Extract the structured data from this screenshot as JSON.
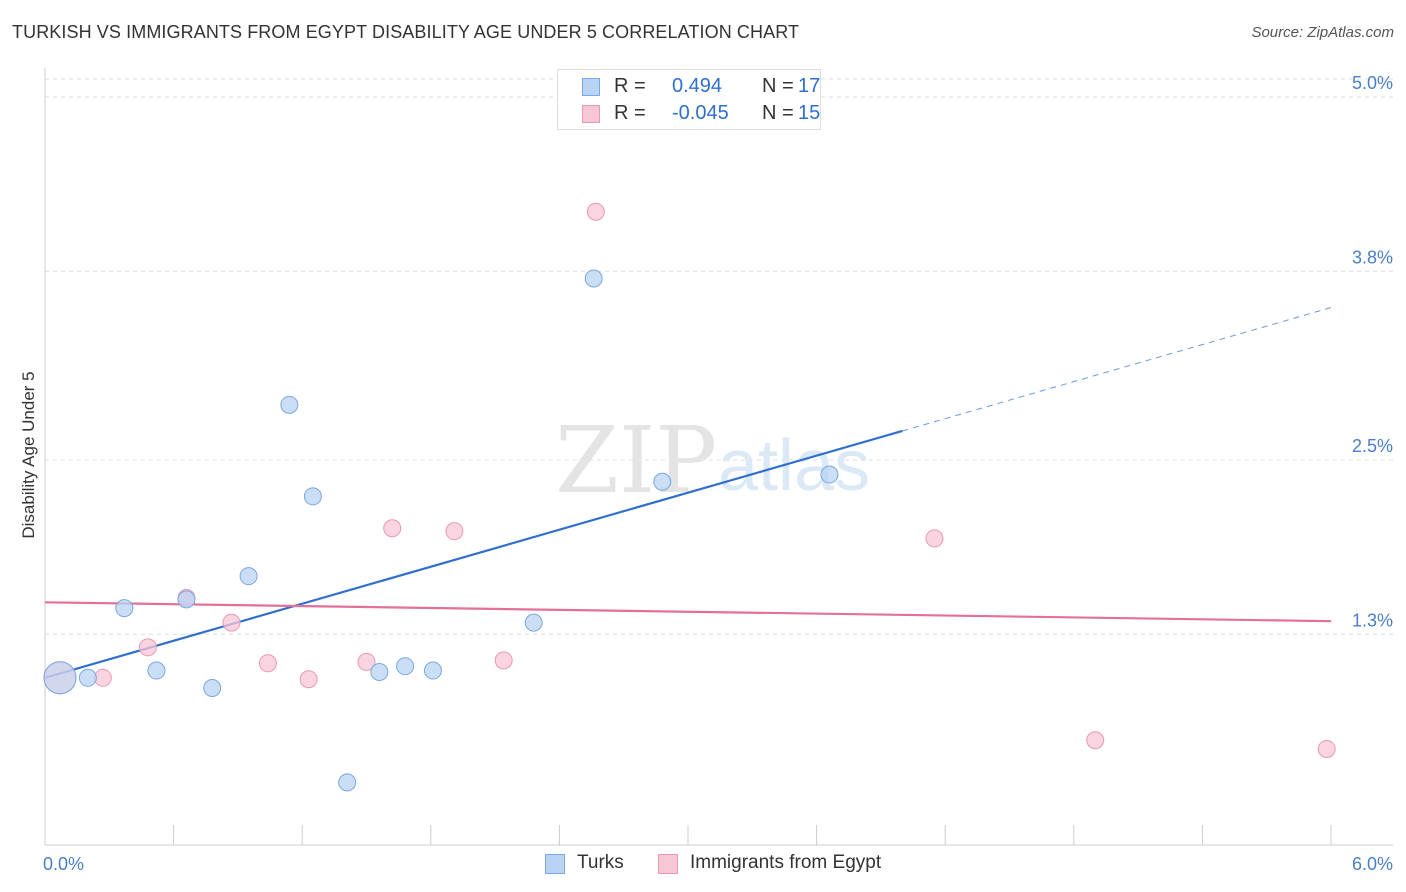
{
  "header": {
    "title": "TURKISH VS IMMIGRANTS FROM EGYPT DISABILITY AGE UNDER 5 CORRELATION CHART",
    "source": "Source: ZipAtlas.com"
  },
  "watermark": {
    "zip": "ZIP",
    "atlas": "atlas"
  },
  "stats": {
    "turks": {
      "r_label": "R =",
      "r_value": "0.494",
      "n_label": "N =",
      "n_value": "17"
    },
    "egypt": {
      "r_label": "R =",
      "r_value": "-0.045",
      "n_label": "N =",
      "n_value": "15"
    }
  },
  "legend": {
    "turks": "Turks",
    "egypt": "Immigrants from Egypt"
  },
  "colors": {
    "turks_fill": "#b8d3f3",
    "turks_stroke": "#7aa8e0",
    "turks_line": "#2f6fcf",
    "egypt_fill": "#f8c6d5",
    "egypt_stroke": "#e899b2",
    "egypt_line": "#e3709a",
    "tick_text": "#4a7fc8",
    "grid": "#dcdcdc"
  },
  "chart_data": {
    "type": "scatter",
    "title": "TURKISH VS IMMIGRANTS FROM EGYPT DISABILITY AGE UNDER 5 CORRELATION CHART",
    "xlabel": "",
    "ylabel": "Disability Age Under 5",
    "xlim": [
      0.0,
      6.0
    ],
    "ylim": [
      0.0,
      5.2
    ],
    "x_tick_labels": [
      {
        "value": 0.0,
        "label": "0.0%"
      },
      {
        "value": 6.0,
        "label": "6.0%"
      }
    ],
    "y_ticks": [
      {
        "value": 1.3,
        "label": "1.3%"
      },
      {
        "value": 2.5,
        "label": "2.5%"
      },
      {
        "value": 3.8,
        "label": "3.8%"
      },
      {
        "value": 5.0,
        "label": "5.0%"
      }
    ],
    "grid": true,
    "legend_position": "bottom-center",
    "series": [
      {
        "name": "Turks",
        "r": 0.494,
        "n": 17,
        "points": [
          {
            "x": 0.07,
            "y": 1.0,
            "big": true
          },
          {
            "x": 0.2,
            "y": 1.0
          },
          {
            "x": 0.37,
            "y": 1.48
          },
          {
            "x": 0.52,
            "y": 1.05
          },
          {
            "x": 0.66,
            "y": 1.54
          },
          {
            "x": 0.78,
            "y": 0.93
          },
          {
            "x": 0.95,
            "y": 1.7
          },
          {
            "x": 1.14,
            "y": 2.88
          },
          {
            "x": 1.25,
            "y": 2.25
          },
          {
            "x": 1.41,
            "y": 0.28
          },
          {
            "x": 1.56,
            "y": 1.04
          },
          {
            "x": 1.68,
            "y": 1.08
          },
          {
            "x": 1.81,
            "y": 1.05
          },
          {
            "x": 2.28,
            "y": 1.38
          },
          {
            "x": 2.56,
            "y": 3.75
          },
          {
            "x": 2.88,
            "y": 2.35
          },
          {
            "x": 3.66,
            "y": 2.4
          }
        ],
        "trend": {
          "x0": 0.0,
          "y0": 1.0,
          "x1": 4.0,
          "y1": 2.7,
          "dash_x1": 6.0,
          "dash_y1": 3.55
        }
      },
      {
        "name": "Immigrants from Egypt",
        "r": -0.045,
        "n": 15,
        "points": [
          {
            "x": 0.07,
            "y": 1.0,
            "big": true
          },
          {
            "x": 0.27,
            "y": 1.0
          },
          {
            "x": 0.48,
            "y": 1.21
          },
          {
            "x": 0.66,
            "y": 1.55
          },
          {
            "x": 0.87,
            "y": 1.38
          },
          {
            "x": 1.04,
            "y": 1.1
          },
          {
            "x": 1.23,
            "y": 0.99
          },
          {
            "x": 1.5,
            "y": 1.11
          },
          {
            "x": 1.62,
            "y": 2.03
          },
          {
            "x": 1.91,
            "y": 2.01
          },
          {
            "x": 2.14,
            "y": 1.12
          },
          {
            "x": 2.57,
            "y": 4.21
          },
          {
            "x": 4.15,
            "y": 1.96
          },
          {
            "x": 4.9,
            "y": 0.57
          },
          {
            "x": 5.98,
            "y": 0.51
          }
        ],
        "trend": {
          "x0": 0.0,
          "y0": 1.52,
          "x1": 6.0,
          "y1": 1.39
        }
      }
    ]
  }
}
